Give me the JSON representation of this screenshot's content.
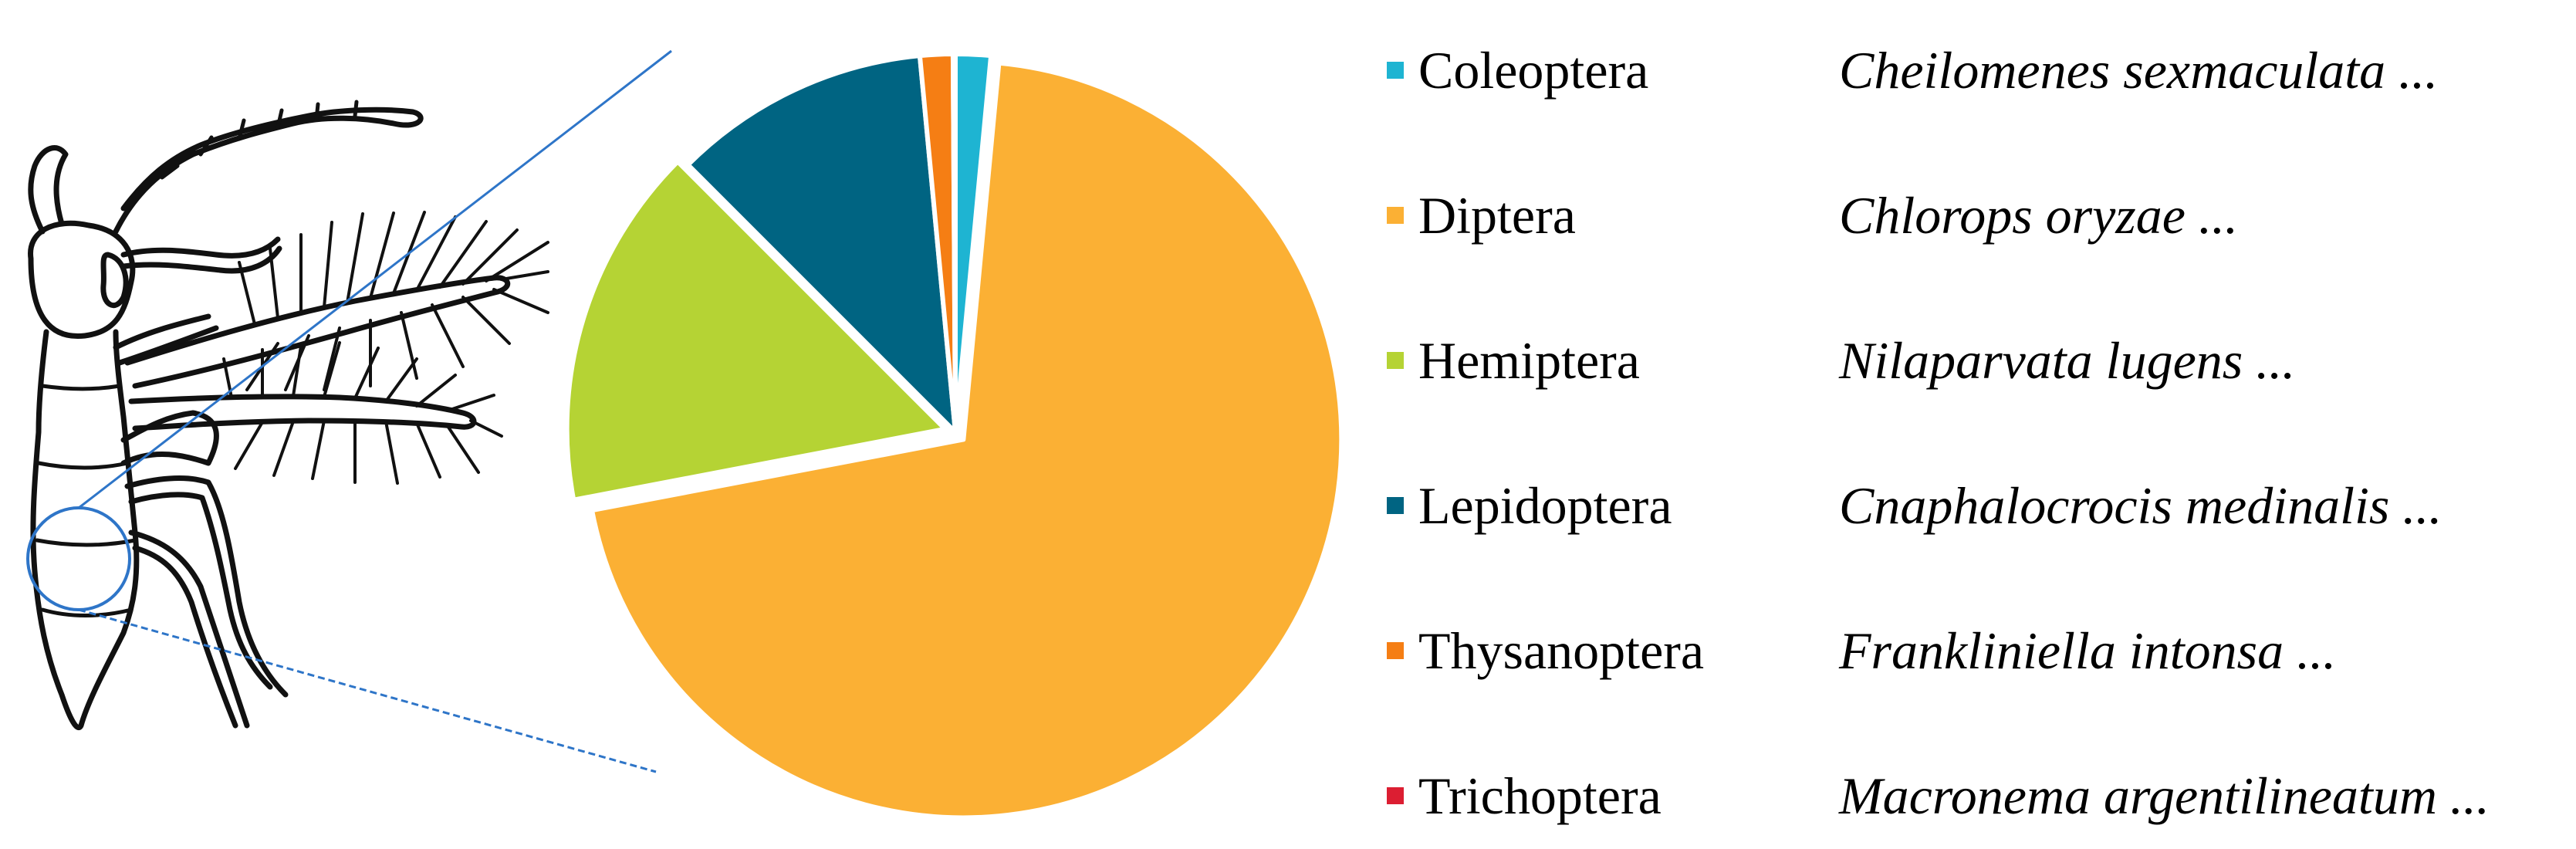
{
  "chart_data": {
    "type": "pie",
    "title": "",
    "legend_position": "right",
    "series": [
      {
        "name": "Coleoptera",
        "species": "Cheilomenes sexmaculata ...",
        "value": 1.5,
        "color": "#1EB4D2",
        "exploded": false
      },
      {
        "name": "Diptera",
        "species": "Chlorops oryzae ...",
        "value": 70.5,
        "color": "#FBB034",
        "exploded": true
      },
      {
        "name": "Hemiptera",
        "species": "Nilaparvata lugens ...",
        "value": 15.5,
        "color": "#B5D334",
        "exploded": true
      },
      {
        "name": "Lepidoptera",
        "species": "Cnaphalocrocis medinalis ...",
        "value": 11.0,
        "color": "#006482",
        "exploded": false
      },
      {
        "name": "Thysanoptera",
        "species": "Frankliniella intonsa ...",
        "value": 1.4,
        "color": "#F57E14",
        "exploded": false
      },
      {
        "name": "Trichoptera",
        "species": "Macronema argentilineatum ...",
        "value": 0.1,
        "color": "#DC1E32",
        "exploded": false
      }
    ]
  },
  "illustration": {
    "subject": "insect-illustration",
    "zoom_line_color": "#2E75C8"
  }
}
